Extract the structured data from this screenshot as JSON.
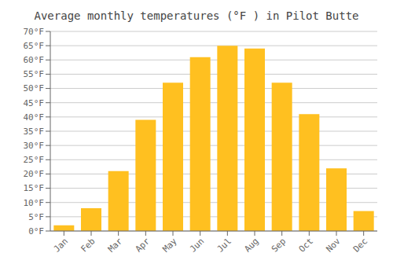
{
  "chart_data": {
    "type": "bar",
    "title": "Average monthly temperatures (°F ) in Pilot Butte",
    "categories": [
      "Jan",
      "Feb",
      "Mar",
      "Apr",
      "May",
      "Jun",
      "Jul",
      "Aug",
      "Sep",
      "Oct",
      "Nov",
      "Dec"
    ],
    "values": [
      2,
      8,
      21,
      39,
      52,
      61,
      65,
      64,
      52,
      41,
      22,
      7
    ],
    "color": "#FFC020",
    "ylim": [
      0,
      70
    ],
    "yticks": [
      {
        "value": 0,
        "label": "0°F"
      },
      {
        "value": 5,
        "label": "5°F"
      },
      {
        "value": 10,
        "label": "10°F"
      },
      {
        "value": 15,
        "label": "15°F"
      },
      {
        "value": 20,
        "label": "20°F"
      },
      {
        "value": 25,
        "label": "25°F"
      },
      {
        "value": 30,
        "label": "30°F"
      },
      {
        "value": 35,
        "label": "35°F"
      },
      {
        "value": 40,
        "label": "40°F"
      },
      {
        "value": 45,
        "label": "45°F"
      },
      {
        "value": 50,
        "label": "50°F"
      },
      {
        "value": 55,
        "label": "55°F"
      },
      {
        "value": 60,
        "label": "60°F"
      },
      {
        "value": 65,
        "label": "65°F"
      },
      {
        "value": 70,
        "label": "70°F"
      }
    ],
    "grid": true
  }
}
